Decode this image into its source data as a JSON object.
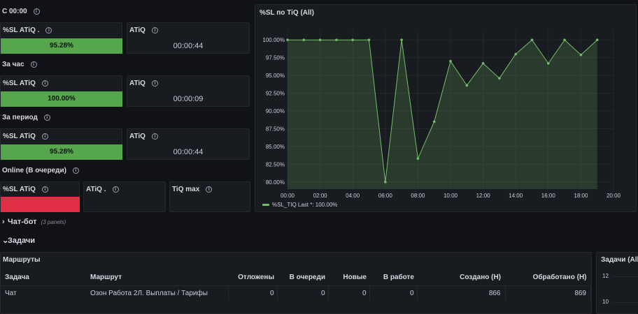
{
  "sections": {
    "today": "С 00:00",
    "hour": "За час",
    "period": "За период",
    "online": "Online (В очереди)"
  },
  "stats": {
    "today": {
      "sl_title": "%SL ATiQ .",
      "sl_value": "95.28%",
      "sl_fill": 0.9528,
      "atiq_title": "ATiQ",
      "atiq_value": "00:00:44"
    },
    "hour": {
      "sl_title": "%SL ATiQ",
      "sl_value": "100.00%",
      "sl_fill": 1.0,
      "atiq_title": "ATiQ",
      "atiq_value": "00:00:09"
    },
    "period": {
      "sl_title": "%SL ATiQ",
      "sl_value": "95.28%",
      "sl_fill": 0.9528,
      "atiq_title": "ATiQ",
      "atiq_value": "00:00:44"
    },
    "online": {
      "sl_title": "%SL ATiQ",
      "atiq_title": "ATiQ .",
      "tiq_max_title": "TiQ max"
    }
  },
  "info_glyph": "i",
  "colors": {
    "good": "#56a64b",
    "bad": "#e02f44",
    "series": "#73bf69"
  },
  "chart_panel": {
    "title": "%SL по TiQ (All)"
  },
  "chart_data": {
    "type": "area",
    "title": "%SL по TiQ (All)",
    "x": [
      "00:00",
      "01:00",
      "02:00",
      "03:00",
      "04:00",
      "05:00",
      "06:00",
      "07:00",
      "08:00",
      "09:00",
      "10:00",
      "11:00",
      "12:00",
      "13:00",
      "14:00",
      "15:00",
      "16:00",
      "17:00",
      "18:00",
      "19:00"
    ],
    "y_ticks": [
      "100.00%",
      "97.50%",
      "95.00%",
      "92.50%",
      "90.00%",
      "87.50%",
      "85.00%",
      "82.50%",
      "80.00%"
    ],
    "x_ticks": [
      "00:00",
      "02:00",
      "04:00",
      "06:00",
      "08:00",
      "10:00",
      "12:00",
      "14:00",
      "16:00",
      "18:00",
      "20:00"
    ],
    "ylim": [
      79,
      101
    ],
    "xlim": [
      0,
      20
    ],
    "grid": true,
    "legend_position": "bottom-left",
    "series": [
      {
        "name": "%SL_TIQ",
        "values": [
          100,
          100,
          100,
          100,
          100,
          100,
          80,
          100,
          83.3,
          88.5,
          97,
          93.6,
          96.7,
          94.6,
          98,
          100,
          96.7,
          100,
          97.9,
          100
        ]
      }
    ],
    "legend_text": "%SL_TIQ  Last *: 100.00%"
  },
  "rows": {
    "chatbot": {
      "label": "Чат-бот",
      "note": "(3 panels)",
      "chevron": "›"
    },
    "tasks": {
      "label": "Задачи",
      "chevron": "⌄"
    }
  },
  "routes_panel": {
    "title": "Маршруты",
    "columns": [
      "Задача",
      "Маршрут",
      "Отложены",
      "В очереди",
      "Новые",
      "В работе",
      "Создано (Н)",
      "Обработано (Н)"
    ],
    "rows": [
      [
        "Чат",
        "Озон Работа 2Л. Выплаты / Тарифы",
        "0",
        "0",
        "0",
        "0",
        "866",
        "869"
      ]
    ]
  },
  "tasks_panel": {
    "title": "Задачи (All",
    "y_ticks": [
      "12",
      "10"
    ]
  }
}
